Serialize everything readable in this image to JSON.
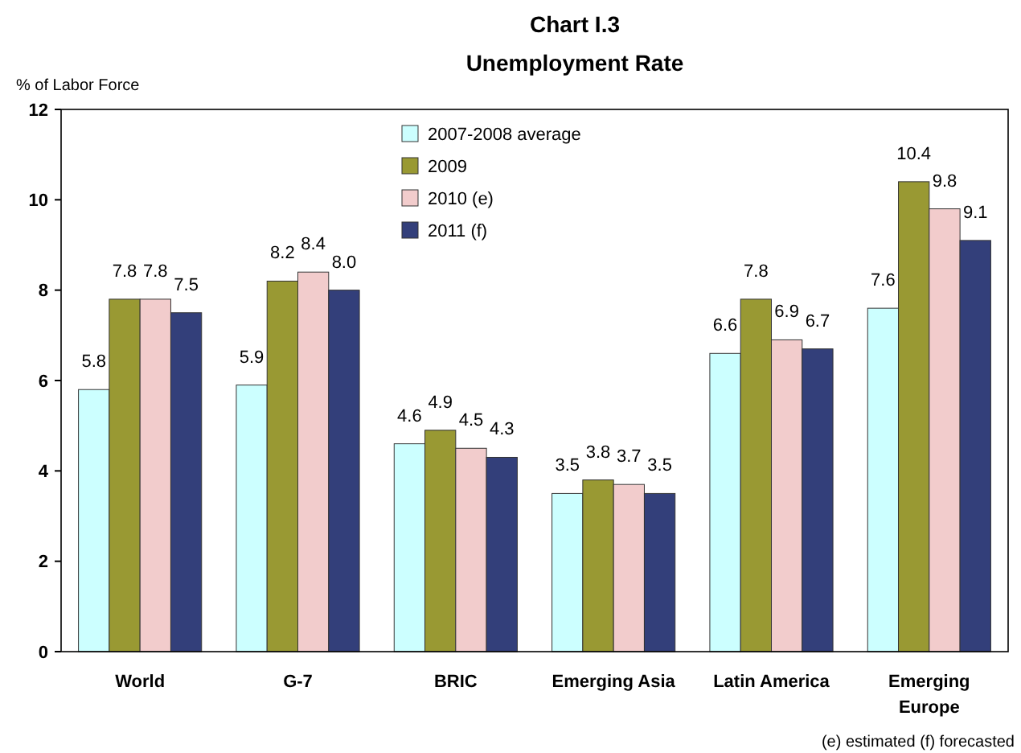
{
  "chart_data": {
    "type": "bar",
    "title": "Chart I.3",
    "subtitle": "Unemployment Rate",
    "ylabel": "% of Labor Force",
    "categories": [
      "World",
      "G-7",
      "BRIC",
      "Emerging Asia",
      "Latin America",
      "Emerging Europe"
    ],
    "series": [
      {
        "name": "2007-2008 average",
        "color": "#ccffff",
        "values": [
          5.8,
          5.9,
          4.6,
          3.5,
          6.6,
          7.6
        ],
        "value_labels": [
          "5.8",
          "5.9",
          "4.6",
          "3.5",
          "6.6",
          "7.6"
        ]
      },
      {
        "name": "2009",
        "color": "#999933",
        "values": [
          7.8,
          8.2,
          4.9,
          3.8,
          7.8,
          10.4
        ],
        "value_labels": [
          "7.8",
          "8.2",
          "4.9",
          "3.8",
          "7.8",
          "10.4"
        ]
      },
      {
        "name": "2010 (e)",
        "color": "#f2cccc",
        "values": [
          7.8,
          8.4,
          4.5,
          3.7,
          6.9,
          9.8
        ],
        "value_labels": [
          "7.8",
          "8.4",
          "4.5",
          "3.7",
          "6.9",
          "9.8"
        ]
      },
      {
        "name": "2011 (f)",
        "color": "#333f7a",
        "values": [
          7.5,
          8.0,
          4.3,
          3.5,
          6.7,
          9.1
        ],
        "value_labels": [
          "7.5",
          "8.0",
          "4.3",
          "3.5",
          "6.7",
          "9.1"
        ]
      }
    ],
    "ylim": [
      0,
      12
    ],
    "yticks": [
      0,
      2,
      4,
      6,
      8,
      10,
      12
    ],
    "grid": false,
    "legend": "top",
    "annotations": [
      "(e) estimated (f) forecasted"
    ]
  }
}
